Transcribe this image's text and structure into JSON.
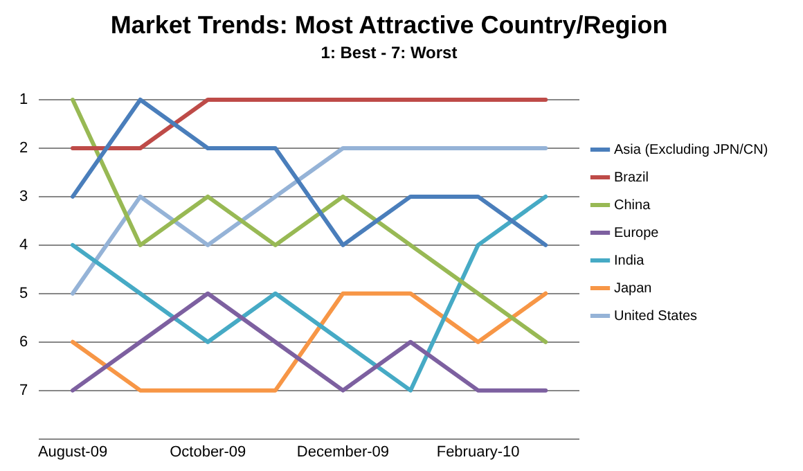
{
  "chart_data": {
    "type": "line",
    "title": "Market Trends: Most Attractive Country/Region",
    "subtitle": "1: Best - 7: Worst",
    "categories": [
      "August-09",
      null,
      "October-09",
      null,
      "December-09",
      null,
      "February-10",
      null
    ],
    "series": [
      {
        "name": "Asia (Excluding JPN/CN)",
        "color": "#4a7ebb",
        "values": [
          3,
          1,
          2,
          2,
          4,
          3,
          3,
          4
        ]
      },
      {
        "name": "Brazil",
        "color": "#be4b48",
        "values": [
          2,
          2,
          1,
          1,
          1,
          1,
          1,
          1
        ]
      },
      {
        "name": "China",
        "color": "#98b954",
        "values": [
          1,
          4,
          3,
          4,
          3,
          4,
          5,
          6
        ]
      },
      {
        "name": "Europe",
        "color": "#7d60a0",
        "values": [
          7,
          6,
          5,
          6,
          7,
          6,
          7,
          7
        ]
      },
      {
        "name": "India",
        "color": "#46aac5",
        "values": [
          4,
          5,
          6,
          5,
          6,
          7,
          4,
          3
        ]
      },
      {
        "name": "Japan",
        "color": "#f79646",
        "values": [
          6,
          7,
          7,
          7,
          5,
          5,
          6,
          5
        ]
      },
      {
        "name": "United States",
        "color": "#95b3d7",
        "values": [
          5,
          3,
          4,
          3,
          2,
          2,
          2,
          2
        ]
      }
    ],
    "ylim": [
      8,
      1
    ],
    "yticks": [
      1,
      2,
      3,
      4,
      5,
      6,
      7,
      {
        "value": 8,
        "label": null
      }
    ],
    "grid": "y",
    "legend": "right",
    "marker": "none",
    "line_style": "solid"
  }
}
